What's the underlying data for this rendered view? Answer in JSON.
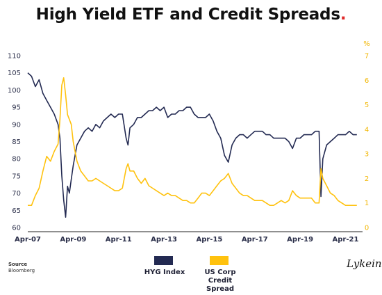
{
  "title": "High Yield ETF and Credit Spreads",
  "title_dot": ".",
  "source_label": "Source",
  "source_value": "Bloomberg",
  "logo": "Lykein",
  "legend": [
    {
      "label": "HYG Index",
      "color": "#232a52"
    },
    {
      "label": "US Corp Credit Spread",
      "color": "#ffc20e"
    }
  ],
  "chart_data": {
    "type": "line",
    "title": "High Yield ETF and Credit Spreads",
    "x_tick_labels": [
      "Apr-07",
      "Apr-09",
      "Apr-11",
      "Apr-13",
      "Apr-15",
      "Apr-17",
      "Apr-19",
      "Apr-21"
    ],
    "y_left": {
      "min": 60,
      "max": 110,
      "ticks": [
        60,
        65,
        70,
        75,
        80,
        85,
        90,
        95,
        100,
        105,
        110
      ]
    },
    "y_right": {
      "unit": "%",
      "min": 0,
      "max": 7,
      "ticks": [
        0,
        1,
        2,
        3,
        4,
        5,
        6,
        7
      ]
    },
    "grid": false,
    "legend_position": "bottom",
    "series": [
      {
        "name": "HYG Index",
        "axis": "left",
        "color": "#232a52",
        "x": [
          "2007-04",
          "2007-06",
          "2007-08",
          "2007-10",
          "2007-12",
          "2008-02",
          "2008-04",
          "2008-06",
          "2008-08",
          "2008-09",
          "2008-10",
          "2008-11",
          "2008-12",
          "2009-01",
          "2009-02",
          "2009-03",
          "2009-04",
          "2009-06",
          "2009-08",
          "2009-10",
          "2009-12",
          "2010-02",
          "2010-04",
          "2010-06",
          "2010-08",
          "2010-10",
          "2010-12",
          "2011-02",
          "2011-04",
          "2011-06",
          "2011-08",
          "2011-09",
          "2011-10",
          "2011-12",
          "2012-02",
          "2012-04",
          "2012-06",
          "2012-08",
          "2012-10",
          "2012-12",
          "2013-02",
          "2013-04",
          "2013-06",
          "2013-08",
          "2013-10",
          "2013-12",
          "2014-02",
          "2014-04",
          "2014-06",
          "2014-08",
          "2014-10",
          "2014-12",
          "2015-02",
          "2015-04",
          "2015-06",
          "2015-08",
          "2015-10",
          "2015-12",
          "2016-02",
          "2016-04",
          "2016-06",
          "2016-08",
          "2016-10",
          "2016-12",
          "2017-02",
          "2017-04",
          "2017-06",
          "2017-08",
          "2017-10",
          "2017-12",
          "2018-02",
          "2018-04",
          "2018-06",
          "2018-08",
          "2018-10",
          "2018-12",
          "2019-02",
          "2019-04",
          "2019-06",
          "2019-08",
          "2019-10",
          "2019-12",
          "2020-02",
          "2020-03",
          "2020-04",
          "2020-06",
          "2020-08",
          "2020-10",
          "2020-12",
          "2021-02",
          "2021-04",
          "2021-06",
          "2021-08",
          "2021-10"
        ],
        "values": [
          105,
          104,
          101,
          103,
          99,
          97,
          95,
          93,
          90,
          86,
          75,
          68,
          63,
          72,
          70,
          74,
          78,
          84,
          86,
          88,
          89,
          88,
          90,
          89,
          91,
          92,
          93,
          92,
          93,
          93,
          86,
          84,
          89,
          90,
          92,
          92,
          93,
          94,
          94,
          95,
          94,
          95,
          92,
          93,
          93,
          94,
          94,
          95,
          95,
          93,
          92,
          92,
          92,
          93,
          91,
          88,
          86,
          81,
          79,
          84,
          86,
          87,
          87,
          86,
          87,
          88,
          88,
          88,
          87,
          87,
          86,
          86,
          86,
          86,
          85,
          83,
          86,
          86,
          87,
          87,
          87,
          88,
          88,
          69,
          80,
          84,
          85,
          86,
          87,
          87,
          87,
          88,
          87,
          87
        ]
      },
      {
        "name": "US Corp Credit Spread",
        "axis": "right",
        "color": "#ffc20e",
        "x": [
          "2007-04",
          "2007-06",
          "2007-08",
          "2007-10",
          "2007-12",
          "2008-02",
          "2008-04",
          "2008-06",
          "2008-08",
          "2008-09",
          "2008-10",
          "2008-11",
          "2008-12",
          "2009-01",
          "2009-02",
          "2009-03",
          "2009-04",
          "2009-06",
          "2009-08",
          "2009-10",
          "2009-12",
          "2010-02",
          "2010-04",
          "2010-06",
          "2010-08",
          "2010-10",
          "2010-12",
          "2011-02",
          "2011-04",
          "2011-06",
          "2011-08",
          "2011-09",
          "2011-10",
          "2011-12",
          "2012-02",
          "2012-04",
          "2012-06",
          "2012-08",
          "2012-10",
          "2012-12",
          "2013-02",
          "2013-04",
          "2013-06",
          "2013-08",
          "2013-10",
          "2013-12",
          "2014-02",
          "2014-04",
          "2014-06",
          "2014-08",
          "2014-10",
          "2014-12",
          "2015-02",
          "2015-04",
          "2015-06",
          "2015-08",
          "2015-10",
          "2015-12",
          "2016-02",
          "2016-04",
          "2016-06",
          "2016-08",
          "2016-10",
          "2016-12",
          "2017-02",
          "2017-04",
          "2017-06",
          "2017-08",
          "2017-10",
          "2017-12",
          "2018-02",
          "2018-04",
          "2018-06",
          "2018-08",
          "2018-10",
          "2018-12",
          "2019-02",
          "2019-04",
          "2019-06",
          "2019-08",
          "2019-10",
          "2019-12",
          "2020-02",
          "2020-03",
          "2020-04",
          "2020-06",
          "2020-08",
          "2020-10",
          "2020-12",
          "2021-02",
          "2021-04",
          "2021-06",
          "2021-08",
          "2021-10"
        ],
        "values": [
          0.9,
          0.9,
          1.3,
          1.6,
          2.3,
          2.9,
          2.7,
          3.1,
          3.4,
          4.4,
          5.8,
          6.1,
          5.4,
          4.6,
          4.4,
          4.2,
          3.5,
          2.7,
          2.3,
          2.1,
          1.9,
          1.9,
          2.0,
          1.9,
          1.8,
          1.7,
          1.6,
          1.5,
          1.5,
          1.6,
          2.4,
          2.6,
          2.3,
          2.3,
          2.0,
          1.8,
          2.0,
          1.7,
          1.6,
          1.5,
          1.4,
          1.3,
          1.4,
          1.3,
          1.3,
          1.2,
          1.1,
          1.1,
          1.0,
          1.0,
          1.2,
          1.4,
          1.4,
          1.3,
          1.5,
          1.7,
          1.9,
          2.0,
          2.2,
          1.8,
          1.6,
          1.4,
          1.3,
          1.3,
          1.2,
          1.1,
          1.1,
          1.1,
          1.0,
          0.9,
          0.9,
          1.0,
          1.1,
          1.0,
          1.1,
          1.5,
          1.3,
          1.2,
          1.2,
          1.2,
          1.2,
          1.0,
          1.0,
          2.4,
          2.0,
          1.7,
          1.4,
          1.3,
          1.1,
          1.0,
          0.9,
          0.9,
          0.9,
          0.9
        ]
      }
    ]
  }
}
